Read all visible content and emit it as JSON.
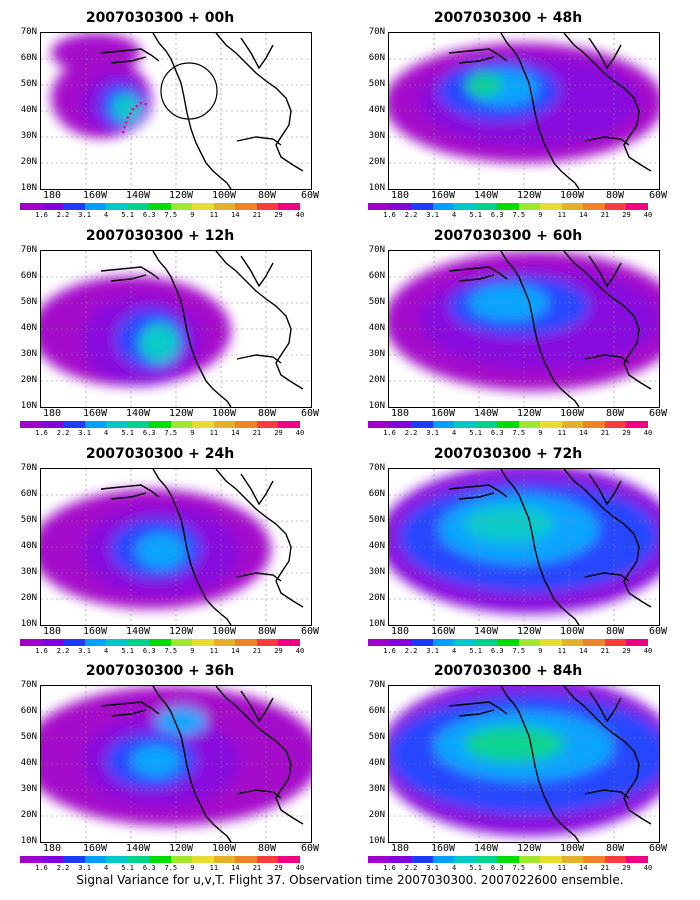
{
  "panels": [
    {
      "title": "2007030300 + 00h"
    },
    {
      "title": "2007030300 + 48h"
    },
    {
      "title": "2007030300 + 12h"
    },
    {
      "title": "2007030300 + 60h"
    },
    {
      "title": "2007030300 + 24h"
    },
    {
      "title": "2007030300 + 72h"
    },
    {
      "title": "2007030300 + 36h"
    },
    {
      "title": "2007030300 + 84h"
    }
  ],
  "lat_labels": [
    "70N",
    "60N",
    "50N",
    "40N",
    "30N",
    "20N",
    "10N"
  ],
  "lon_labels": [
    "180",
    "160W",
    "140W",
    "120W",
    "100W",
    "80W",
    "60W"
  ],
  "colorbar": {
    "colors": [
      "#a000c8",
      "#8200dc",
      "#1e3cff",
      "#00a0ff",
      "#00c8c8",
      "#00d28c",
      "#00dc00",
      "#a0e632",
      "#e6dc32",
      "#e6af2d",
      "#f08228",
      "#fa3c3c",
      "#f00082"
    ],
    "labels": [
      "1.6",
      "2.2",
      "3.1",
      "4",
      "5.1",
      "6.3",
      "7.5",
      "9",
      "11",
      "14",
      "21",
      "29",
      "40"
    ]
  },
  "caption": "Signal Variance for u,v,T. Flight 37. Observation time 2007030300. 2007022600 ensemble."
}
